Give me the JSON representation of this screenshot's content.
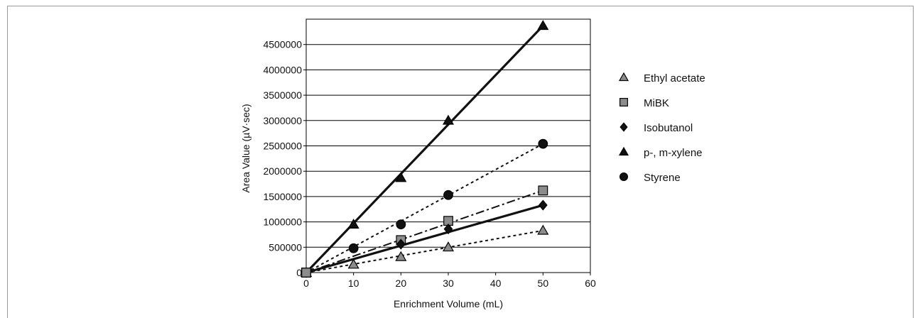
{
  "chart_data": {
    "type": "scatter",
    "title": "",
    "xlabel": "Enrichment Volume (mL)",
    "ylabel": "Area Value (µV·sec)",
    "xlim": [
      0,
      60
    ],
    "ylim": [
      0,
      5000000
    ],
    "x_ticks": [
      0,
      10,
      20,
      30,
      40,
      50,
      60
    ],
    "y_ticks": [
      0,
      500000,
      1000000,
      1500000,
      2000000,
      2500000,
      3000000,
      3500000,
      4000000,
      4500000
    ],
    "grid": "horizontal",
    "legend_position": "right",
    "series": [
      {
        "name": "Ethyl acetate",
        "marker": "triangle",
        "marker_fill": "#8c8c8c",
        "line": "dotted",
        "line_color": "#222222",
        "x": [
          0,
          10,
          20,
          30,
          50
        ],
        "y": [
          0,
          160000,
          310000,
          500000,
          830000
        ]
      },
      {
        "name": "MiBK",
        "marker": "square",
        "marker_fill": "#8c8c8c",
        "line": "dash-dot",
        "line_color": "#222222",
        "x": [
          0,
          20,
          30,
          50
        ],
        "y": [
          0,
          640000,
          1020000,
          1620000
        ]
      },
      {
        "name": "Isobutanol",
        "marker": "diamond",
        "marker_fill": "#111111",
        "line": "solid",
        "line_color": "#222222",
        "x": [
          0,
          20,
          30,
          50
        ],
        "y": [
          0,
          560000,
          860000,
          1330000
        ]
      },
      {
        "name": "p-, m-xylene",
        "marker": "triangle",
        "marker_fill": "#111111",
        "line": "solid",
        "line_color": "#222222",
        "x": [
          0,
          10,
          20,
          30,
          50
        ],
        "y": [
          0,
          950000,
          1870000,
          3000000,
          4870000
        ]
      },
      {
        "name": "Styrene",
        "marker": "circle",
        "marker_fill": "#111111",
        "line": "dotted",
        "line_color": "#222222",
        "x": [
          0,
          10,
          20,
          30,
          50
        ],
        "y": [
          0,
          480000,
          950000,
          1530000,
          2540000
        ]
      }
    ],
    "trendlines": [
      {
        "series": "p-, m-xylene",
        "style": "solid-thick",
        "from": [
          0,
          0
        ],
        "to": [
          50,
          4870000
        ]
      },
      {
        "series": "Styrene",
        "style": "dotted",
        "from": [
          0,
          0
        ],
        "to": [
          50,
          2540000
        ]
      },
      {
        "series": "MiBK",
        "style": "dash-dot",
        "from": [
          0,
          0
        ],
        "to": [
          50,
          1620000
        ]
      },
      {
        "series": "Isobutanol",
        "style": "solid-thick",
        "from": [
          0,
          0
        ],
        "to": [
          50,
          1330000
        ]
      },
      {
        "series": "Ethyl acetate",
        "style": "dotted",
        "from": [
          0,
          0
        ],
        "to": [
          50,
          830000
        ]
      }
    ]
  }
}
